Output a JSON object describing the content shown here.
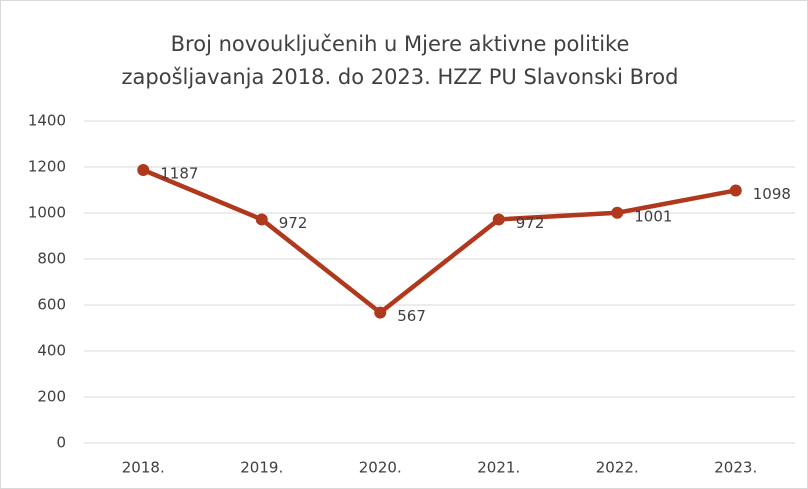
{
  "chart_data": {
    "type": "line",
    "title": [
      "Broj novouključenih u Mjere aktivne politike",
      "zapošljavanja 2018. do 2023. HZZ PU Slavonski Brod"
    ],
    "categories": [
      "2018.",
      "2019.",
      "2020.",
      "2021.",
      "2022.",
      "2023."
    ],
    "values": [
      1187,
      972,
      567,
      972,
      1001,
      1098
    ],
    "color": "#b0381c",
    "ylim": [
      0,
      1400
    ],
    "yticks": [
      0,
      200,
      400,
      600,
      800,
      1000,
      1200,
      1400
    ],
    "grid": true
  }
}
